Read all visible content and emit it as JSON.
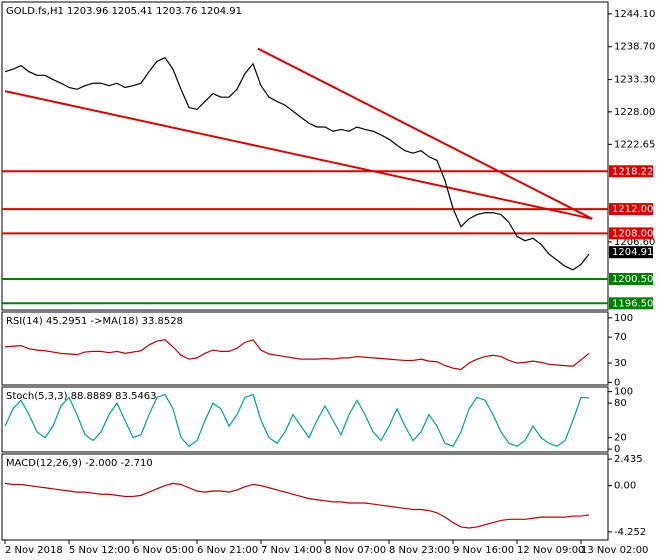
{
  "chart_data": [
    {
      "type": "line",
      "title": "GOLD.fs,H1  1203.96 1205.41 1203.76 1204.91",
      "categories": [
        "2 Nov 2018",
        null,
        null,
        null,
        null,
        null,
        null,
        null,
        "5 Nov 12:00",
        null,
        null,
        null,
        null,
        null,
        null,
        null,
        "6 Nov 05:00",
        null,
        null,
        null,
        null,
        null,
        null,
        null,
        "6 Nov 21:00",
        null,
        null,
        null,
        null,
        null,
        null,
        null,
        "7 Nov 14:00",
        null,
        null,
        null,
        null,
        null,
        null,
        null,
        "8 Nov 07:00",
        null,
        null,
        null,
        null,
        null,
        null,
        null,
        "8 Nov 23:00",
        null,
        null,
        null,
        null,
        null,
        null,
        null,
        "9 Nov 16:00",
        null,
        null,
        null,
        null,
        null,
        null,
        null,
        "12 Nov 09:00",
        null,
        null,
        null,
        null,
        null,
        null,
        null,
        "13 Nov 02:00",
        null
      ],
      "values": [
        1234.6,
        1235.0,
        1235.6,
        1234.6,
        1234.0,
        1234.0,
        1233.3,
        1232.7,
        1232.0,
        1231.7,
        1232.3,
        1232.7,
        1232.7,
        1232.3,
        1232.7,
        1232.0,
        1232.3,
        1232.7,
        1234.6,
        1236.3,
        1236.9,
        1235.0,
        1231.7,
        1228.7,
        1228.4,
        1229.7,
        1231.0,
        1230.4,
        1230.4,
        1231.7,
        1234.3,
        1235.9,
        1232.3,
        1230.4,
        1229.7,
        1229.1,
        1228.1,
        1227.1,
        1226.1,
        1225.5,
        1225.5,
        1224.8,
        1225.1,
        1224.8,
        1225.5,
        1225.1,
        1224.8,
        1224.2,
        1223.5,
        1222.5,
        1221.6,
        1221.2,
        1221.6,
        1220.6,
        1220.0,
        1216.7,
        1212.1,
        1209.1,
        1210.4,
        1211.1,
        1211.4,
        1211.4,
        1211.1,
        1209.8,
        1207.5,
        1206.8,
        1207.2,
        1206.2,
        1204.6,
        1203.6,
        1202.6,
        1202.0,
        1202.9,
        1204.6
      ],
      "color": "#000000",
      "ylim": [
        1195.4,
        1246.06
      ],
      "yticks": [
        {
          "value": 1244.1,
          "label": "1244.10"
        },
        {
          "value": 1238.7,
          "label": "1238.70"
        },
        {
          "value": 1233.3,
          "label": "1233.30"
        },
        {
          "value": 1228,
          "label": "1228.00"
        },
        {
          "value": 1222.65,
          "label": "1222.65"
        },
        {
          "value": 1206.6,
          "label": "1206.60"
        }
      ],
      "levels": [
        {
          "value": 1218.22,
          "color": "#e00000"
        },
        {
          "value": 1212,
          "label": "1212.00",
          "color": "#e00000"
        },
        {
          "value": 1208,
          "label": "1208.00",
          "color": "#e00000"
        },
        {
          "value": 1200.5,
          "label": "1200.50",
          "color": "#008000"
        },
        {
          "value": 1196.5,
          "label": "1196.50",
          "color": "#008000"
        }
      ],
      "trendlines": [
        {
          "x": [
            0,
            73.4
          ],
          "values": [
            1231.4,
            1210.4
          ],
          "color": "#e00000"
        },
        {
          "x": [
            31.6,
            73.4
          ],
          "values": [
            1238.4,
            1210.4
          ],
          "color": "#e00000"
        }
      ],
      "last": 1204.91
    },
    {
      "type": "line",
      "title": "RSI(14) 45.2951 ->MA(18) 33.8528",
      "values": [
        55,
        56,
        57,
        52,
        50,
        49,
        47,
        45,
        44,
        43,
        47,
        48,
        48,
        46,
        48,
        45,
        47,
        49,
        58,
        64,
        66,
        55,
        42,
        36,
        38,
        45,
        50,
        48,
        48,
        53,
        62,
        66,
        50,
        44,
        42,
        40,
        38,
        36,
        36,
        36,
        37,
        36,
        38,
        38,
        40,
        39,
        38,
        37,
        36,
        35,
        34,
        34,
        36,
        33,
        32,
        26,
        22,
        20,
        30,
        36,
        40,
        42,
        40,
        34,
        30,
        31,
        33,
        31,
        28,
        27,
        26,
        25,
        35,
        45
      ],
      "color": "#c00000",
      "ylim": [
        -4,
        109
      ],
      "yticks": [
        100,
        70,
        30,
        0
      ]
    },
    {
      "type": "line",
      "title": "Stoch(5,3,3) 88.8889 83.5463",
      "values": [
        40,
        70,
        85,
        60,
        30,
        20,
        40,
        75,
        90,
        60,
        25,
        15,
        30,
        60,
        80,
        50,
        20,
        25,
        60,
        90,
        95,
        70,
        20,
        5,
        15,
        50,
        80,
        70,
        40,
        60,
        90,
        95,
        50,
        20,
        10,
        30,
        60,
        40,
        20,
        50,
        75,
        50,
        25,
        60,
        85,
        60,
        30,
        15,
        40,
        70,
        40,
        15,
        30,
        60,
        40,
        10,
        5,
        30,
        70,
        90,
        85,
        60,
        30,
        10,
        5,
        15,
        40,
        20,
        10,
        5,
        15,
        50,
        90,
        89
      ],
      "color": "#00a0a0",
      "ylim": [
        -5,
        108
      ],
      "yticks": [
        100,
        80,
        20,
        0
      ]
    },
    {
      "type": "line",
      "title": "MACD(12,26,9) -2.000 -2.710",
      "values": [
        0.2,
        0.1,
        0.1,
        0,
        -0.1,
        -0.2,
        -0.3,
        -0.4,
        -0.5,
        -0.6,
        -0.6,
        -0.7,
        -0.8,
        -0.8,
        -0.9,
        -1.0,
        -1.0,
        -0.9,
        -0.6,
        -0.3,
        0,
        0.2,
        0.1,
        -0.2,
        -0.5,
        -0.6,
        -0.5,
        -0.5,
        -0.6,
        -0.4,
        -0.1,
        0.1,
        0,
        -0.2,
        -0.4,
        -0.6,
        -0.8,
        -1.0,
        -1.2,
        -1.3,
        -1.4,
        -1.5,
        -1.5,
        -1.6,
        -1.6,
        -1.6,
        -1.7,
        -1.8,
        -1.9,
        -2.0,
        -2.1,
        -2.2,
        -2.2,
        -2.3,
        -2.5,
        -2.9,
        -3.4,
        -3.8,
        -3.9,
        -3.8,
        -3.6,
        -3.4,
        -3.2,
        -3.1,
        -3.1,
        -3.1,
        -3.0,
        -2.9,
        -2.9,
        -2.9,
        -2.9,
        -2.8,
        -2.8,
        -2.7
      ],
      "color": "#c00000",
      "ylim": [
        -5,
        2.9
      ],
      "yticks": [
        2.435,
        {
          "value": 0,
          "label": "0.00"
        },
        -4.252
      ]
    }
  ]
}
